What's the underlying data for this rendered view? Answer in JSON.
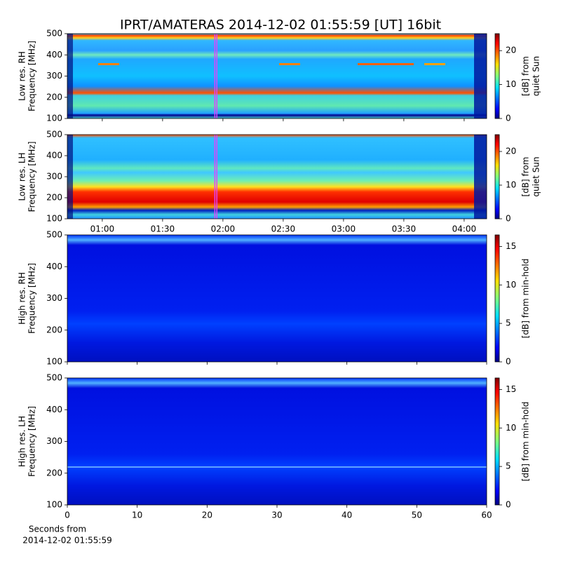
{
  "title": "IPRT/AMATERAS 2014-12-02 01:55:59 [UT]   16bit",
  "chart_data": [
    {
      "type": "spectrogram",
      "ylabel": [
        "Low res. RH",
        "Frequency [MHz]"
      ],
      "ylim": [
        100,
        500
      ],
      "yticks": [
        100,
        200,
        300,
        400,
        500
      ],
      "xlim": [
        42.6,
        251.2
      ],
      "share_x_with": 1,
      "highlight_x": [
        115.98,
        116.98
      ],
      "highlight_color": "#e040ff",
      "colorbar_label": [
        "[dB] from",
        "quiet Sun"
      ],
      "clim": [
        0,
        25
      ],
      "cticks": [
        0,
        10,
        20
      ]
    },
    {
      "type": "spectrogram",
      "ylabel": [
        "Low res. LH",
        "Frequency [MHz]"
      ],
      "ylim": [
        100,
        500
      ],
      "yticks": [
        100,
        200,
        300,
        400,
        500
      ],
      "xlim": [
        42.6,
        251.2
      ],
      "xticks": [
        {
          "value": 60,
          "label": "01:00"
        },
        {
          "value": 90,
          "label": "01:30"
        },
        {
          "value": 120,
          "label": "02:00"
        },
        {
          "value": 150,
          "label": "02:30"
        },
        {
          "value": 180,
          "label": "03:00"
        },
        {
          "value": 210,
          "label": "03:30"
        },
        {
          "value": 240,
          "label": "04:00"
        }
      ],
      "highlight_x": [
        115.98,
        116.98
      ],
      "highlight_color": "#e040ff",
      "colorbar_label": [
        "[dB] from",
        "quiet Sun"
      ],
      "clim": [
        0,
        25
      ],
      "cticks": [
        0,
        10,
        20
      ]
    },
    {
      "type": "spectrogram",
      "ylabel": [
        "High res. RH",
        "Frequency [MHz]"
      ],
      "ylim": [
        100,
        500
      ],
      "yticks": [
        100,
        200,
        300,
        400,
        500
      ],
      "xlim": [
        0,
        60
      ],
      "share_x_with": 3,
      "colorbar_label": [
        "[dB] from min-hold"
      ],
      "clim": [
        0,
        16.5
      ],
      "cticks": [
        0,
        5,
        10,
        15
      ]
    },
    {
      "type": "spectrogram",
      "ylabel": [
        "High res. LH",
        "Frequency [MHz]"
      ],
      "ylim": [
        100,
        500
      ],
      "yticks": [
        100,
        200,
        300,
        400,
        500
      ],
      "xlim": [
        0,
        60
      ],
      "xticks": [
        0,
        10,
        20,
        30,
        40,
        50,
        60
      ],
      "xlabel": [
        "Seconds from",
        "2014-12-02 01:55:59"
      ],
      "colorbar_label": [
        "[dB] from min-hold"
      ],
      "clim": [
        0,
        16.5
      ],
      "cticks": [
        0,
        5,
        10,
        15
      ]
    }
  ]
}
